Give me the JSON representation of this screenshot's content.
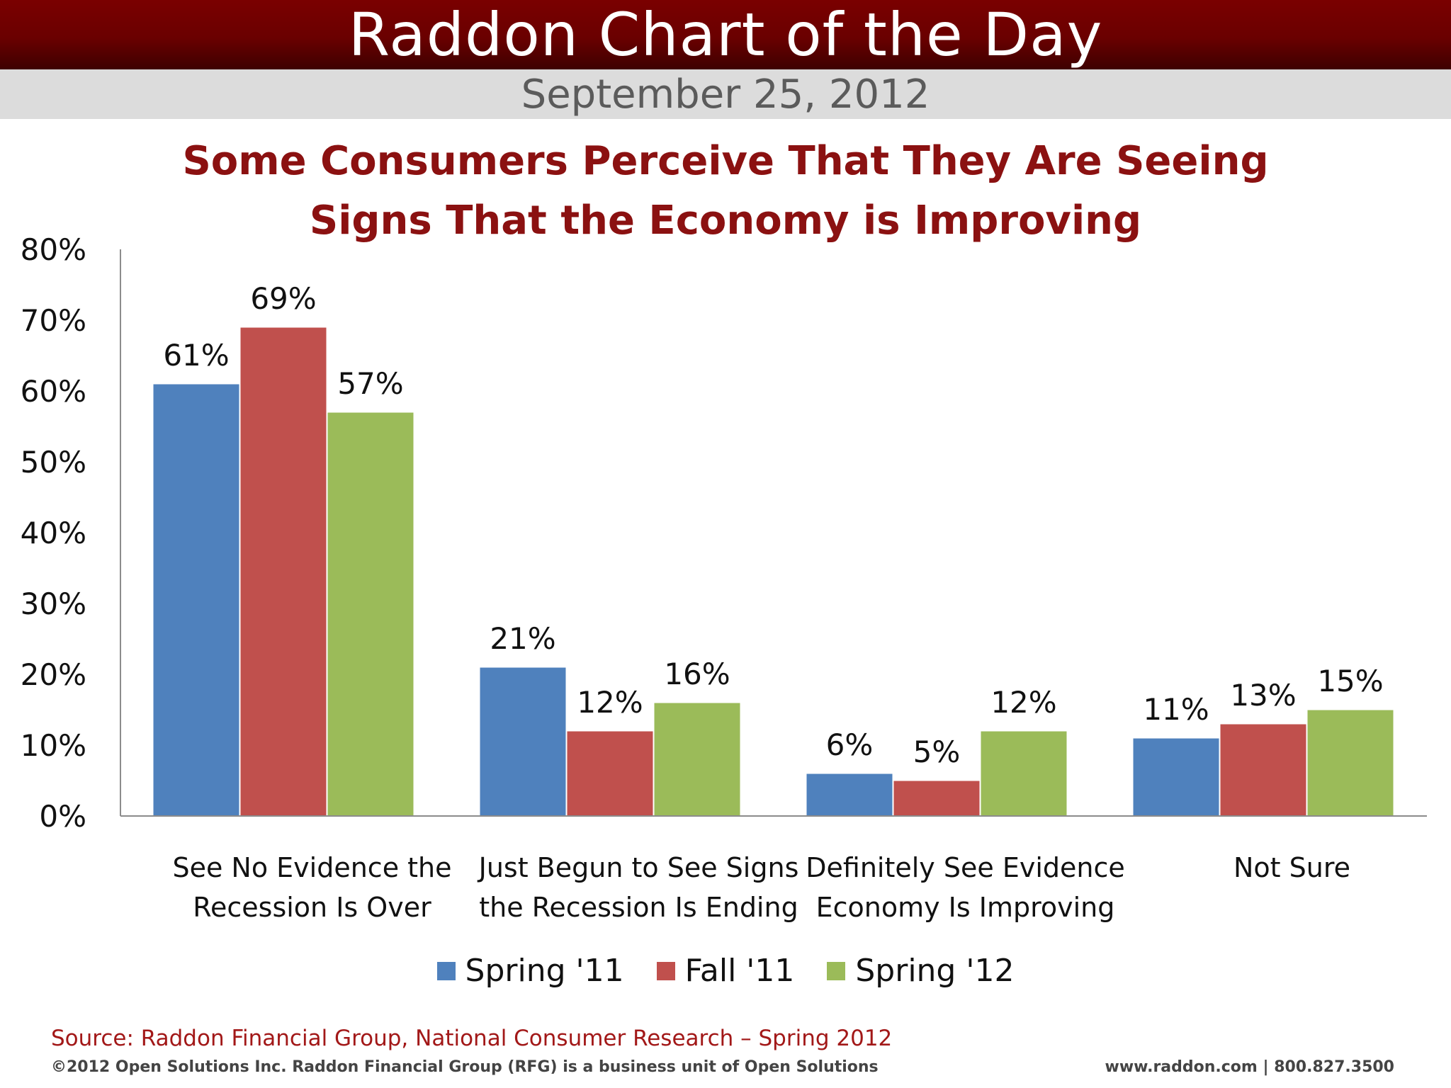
{
  "header": {
    "title": "Raddon Chart of the Day",
    "date": "September 25, 2012"
  },
  "chart_data": {
    "type": "bar",
    "title_lines": [
      "Some Consumers Perceive That They Are Seeing",
      "Signs That the Economy is Improving"
    ],
    "categories": [
      [
        "See No Evidence the",
        "Recession Is Over"
      ],
      [
        "Just Begun to See Signs",
        "the Recession Is Ending"
      ],
      [
        "Definitely See Evidence",
        "Economy Is Improving"
      ],
      [
        "Not Sure"
      ]
    ],
    "series": [
      {
        "name": "Spring '11",
        "color": "#4f81bd",
        "values": [
          61,
          21,
          6,
          11
        ]
      },
      {
        "name": "Fall '11",
        "color": "#c0504d",
        "values": [
          69,
          12,
          5,
          13
        ]
      },
      {
        "name": "Spring '12",
        "color": "#9bbb59",
        "values": [
          57,
          16,
          12,
          15
        ]
      }
    ],
    "value_suffix": "%",
    "ylim": [
      0,
      80
    ],
    "y_ticks": [
      "0%",
      "10%",
      "20%",
      "30%",
      "40%",
      "50%",
      "60%",
      "70%",
      "80%"
    ],
    "grid": false,
    "legend_position": "bottom"
  },
  "footer": {
    "source": "Source: Raddon Financial Group, National Consumer Research – Spring 2012",
    "copyright": "©2012 Open Solutions Inc.  Raddon Financial Group (RFG) is a business unit of Open Solutions",
    "contact": "www.raddon.com  |  800.827.3500"
  }
}
